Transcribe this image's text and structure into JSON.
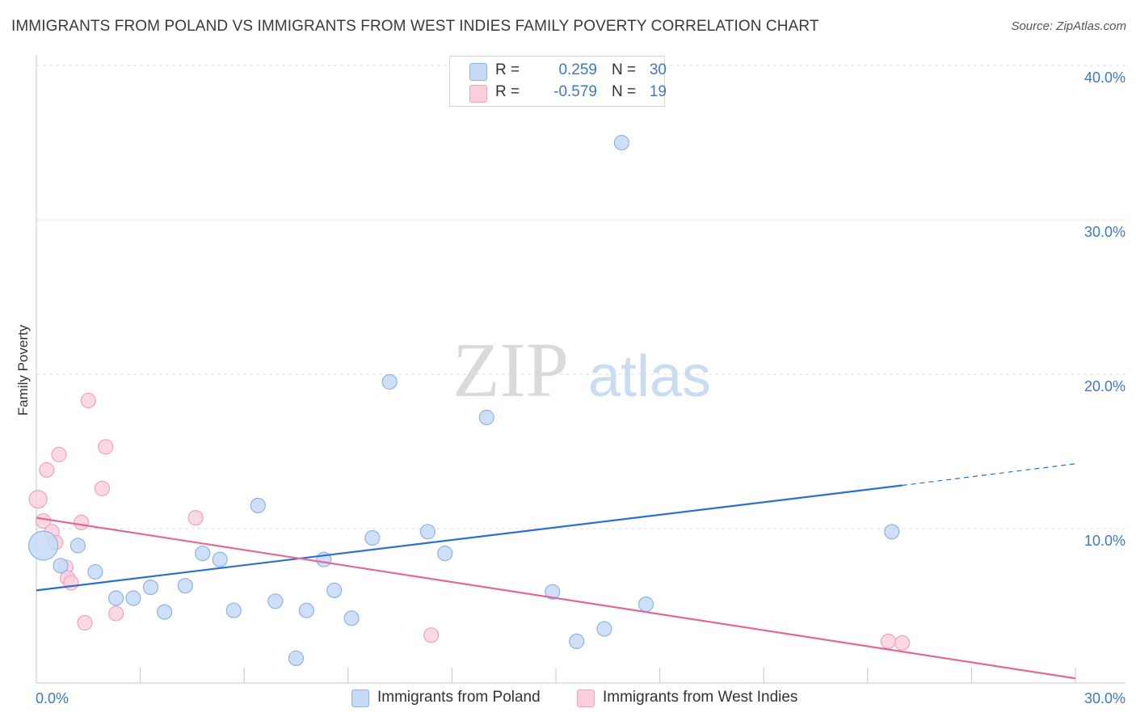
{
  "title": "IMMIGRANTS FROM POLAND VS IMMIGRANTS FROM WEST INDIES FAMILY POVERTY CORRELATION CHART",
  "source": "Source: ZipAtlas.com",
  "watermark": {
    "zip": "ZIP",
    "atlas": "atlas"
  },
  "legend": {
    "poland": {
      "r_label": "R =",
      "r_value": "0.259",
      "n_label": "N =",
      "n_value": "30"
    },
    "westindies": {
      "r_label": "R =",
      "r_value": "-0.579",
      "n_label": "N =",
      "n_value": "19"
    }
  },
  "colors": {
    "poland_fill": "#c6daf6",
    "poland_stroke": "#8fb3e6",
    "poland_line": "#2d6fd0",
    "westindies_fill": "#f9cfdc",
    "westindies_stroke": "#efa3bb",
    "westindies_line": "#e2689a",
    "grid": "#dcdcdc",
    "axis": "#c8c8c8",
    "tick_label": "#3f78c4"
  },
  "chart_data": {
    "type": "scatter",
    "title": "IMMIGRANTS FROM POLAND VS IMMIGRANTS FROM WEST INDIES FAMILY POVERTY CORRELATION CHART",
    "xlabel": "",
    "ylabel": "Family Poverty",
    "xlim": [
      0,
      30
    ],
    "ylim": [
      0,
      42
    ],
    "x_tick_labels": [
      "0.0%",
      "30.0%"
    ],
    "y_ticks": [
      10,
      20,
      30,
      40
    ],
    "y_tick_labels": [
      "10.0%",
      "20.0%",
      "30.0%",
      "40.0%"
    ],
    "series": [
      {
        "name": "Immigrants from Poland",
        "points": [
          [
            0.2,
            8.9,
            18
          ],
          [
            1.2,
            8.9,
            9
          ],
          [
            0.7,
            7.6,
            9
          ],
          [
            1.7,
            7.2,
            9
          ],
          [
            2.3,
            5.5,
            9
          ],
          [
            2.8,
            5.5,
            9
          ],
          [
            3.3,
            6.2,
            9
          ],
          [
            3.7,
            4.6,
            9
          ],
          [
            4.3,
            6.3,
            9
          ],
          [
            4.8,
            8.4,
            9
          ],
          [
            5.3,
            8.0,
            9
          ],
          [
            5.7,
            4.7,
            9
          ],
          [
            6.4,
            11.5,
            9
          ],
          [
            6.9,
            5.3,
            9
          ],
          [
            7.5,
            1.6,
            9
          ],
          [
            7.8,
            4.7,
            9
          ],
          [
            8.3,
            8.0,
            9
          ],
          [
            8.6,
            6.0,
            9
          ],
          [
            9.1,
            4.2,
            9
          ],
          [
            9.7,
            9.4,
            9
          ],
          [
            10.2,
            19.5,
            9
          ],
          [
            11.3,
            9.8,
            9
          ],
          [
            11.8,
            8.4,
            9
          ],
          [
            13.0,
            17.2,
            9
          ],
          [
            14.9,
            5.9,
            9
          ],
          [
            15.6,
            2.7,
            9
          ],
          [
            16.4,
            3.5,
            9
          ],
          [
            16.9,
            35.0,
            9
          ],
          [
            17.6,
            5.1,
            9
          ],
          [
            24.7,
            9.8,
            9
          ]
        ],
        "trend": {
          "x": [
            0,
            25
          ],
          "y": [
            6.0,
            12.8
          ]
        },
        "trend_extension": {
          "x": [
            25,
            30
          ],
          "y": [
            12.8,
            14.2
          ]
        }
      },
      {
        "name": "Immigrants from West Indies",
        "points": [
          [
            0.05,
            11.9,
            11
          ],
          [
            0.2,
            10.5,
            9
          ],
          [
            0.3,
            13.8,
            9
          ],
          [
            0.45,
            9.8,
            9
          ],
          [
            0.55,
            9.1,
            9
          ],
          [
            0.65,
            14.8,
            9
          ],
          [
            0.85,
            7.5,
            9
          ],
          [
            0.9,
            6.8,
            9
          ],
          [
            1.0,
            6.5,
            9
          ],
          [
            1.3,
            10.4,
            9
          ],
          [
            1.4,
            3.9,
            9
          ],
          [
            1.5,
            18.3,
            9
          ],
          [
            1.9,
            12.6,
            9
          ],
          [
            2.0,
            15.3,
            9
          ],
          [
            2.3,
            4.5,
            9
          ],
          [
            4.6,
            10.7,
            9
          ],
          [
            11.4,
            3.1,
            9
          ],
          [
            24.6,
            2.7,
            9
          ],
          [
            25.0,
            2.6,
            9
          ]
        ],
        "trend": {
          "x": [
            0,
            30
          ],
          "y": [
            10.7,
            0.3
          ]
        }
      }
    ]
  }
}
